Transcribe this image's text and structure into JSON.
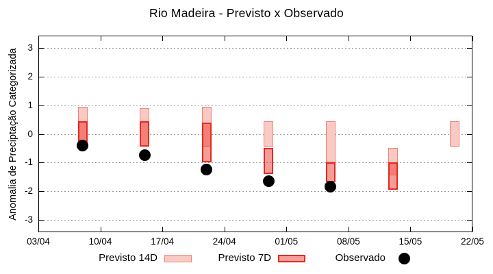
{
  "chart_data": {
    "type": "candlestick",
    "title": "Rio Madeira - Previsto x Observado",
    "ylabel": "Anomalia de Preciptação Categorizada",
    "xlabel": "",
    "ylim": [
      -3.44,
      3.44
    ],
    "yticks": [
      3,
      2,
      1,
      0,
      -1,
      -2,
      -3
    ],
    "xtick_labels": [
      "03/04",
      "10/04",
      "17/04",
      "24/04",
      "01/05",
      "08/05",
      "15/05",
      "22/05"
    ],
    "xtick_days": [
      0,
      7,
      14,
      21,
      28,
      35,
      42,
      49
    ],
    "x_total_days": 49,
    "grid": "horizontal-dotted",
    "legend_position": "bottom",
    "series": [
      {
        "name": "Previsto 14D",
        "type": "range-bar",
        "style": "pink"
      },
      {
        "name": "Previsto 7D",
        "type": "range-bar",
        "style": "red"
      },
      {
        "name": "Observado",
        "type": "point",
        "style": "black-dot"
      }
    ],
    "groups": [
      {
        "date": "08/04",
        "day": 5,
        "previsto_14d": [
          -0.3,
          0.95
        ],
        "previsto_7d": [
          -0.3,
          0.45
        ],
        "observado": -0.4
      },
      {
        "date": "15/04",
        "day": 12,
        "previsto_14d": [
          -0.45,
          0.9
        ],
        "previsto_7d": [
          -0.45,
          0.45
        ],
        "observado": -0.75
      },
      {
        "date": "22/04",
        "day": 19,
        "previsto_14d": [
          -0.45,
          0.95
        ],
        "previsto_7d": [
          -1.0,
          0.4
        ],
        "observado": -1.25
      },
      {
        "date": "29/04",
        "day": 26,
        "previsto_14d": [
          -0.45,
          0.45
        ],
        "previsto_7d": [
          -1.4,
          -0.5
        ],
        "observado": -1.65
      },
      {
        "date": "06/05",
        "day": 33,
        "previsto_14d": [
          -1.0,
          0.45
        ],
        "previsto_7d": [
          -1.7,
          -1.0
        ],
        "observado": -1.85
      },
      {
        "date": "13/05",
        "day": 40,
        "previsto_14d": [
          -1.45,
          -0.5
        ],
        "previsto_7d": [
          -1.95,
          -1.0
        ],
        "observado": null
      },
      {
        "date": "20/05",
        "day": 47,
        "previsto_14d": [
          -0.45,
          0.45
        ],
        "previsto_7d": null,
        "observado": null
      }
    ],
    "colors": {
      "previsto_14d_fill": "#f9c9c4",
      "previsto_14d_border": "#ee8576",
      "previsto_7d_fill": "rgba(233,40,28,0.45)",
      "previsto_7d_border": "#e6281e",
      "observado_dot": "#000000",
      "grid": "#9a9a9a",
      "axis": "#000000"
    },
    "legend": [
      {
        "label": "Previsto 14D",
        "swatch": "pink-box"
      },
      {
        "label": "Previsto 7D",
        "swatch": "red-box"
      },
      {
        "label": "Observado",
        "swatch": "black-dot"
      }
    ]
  }
}
